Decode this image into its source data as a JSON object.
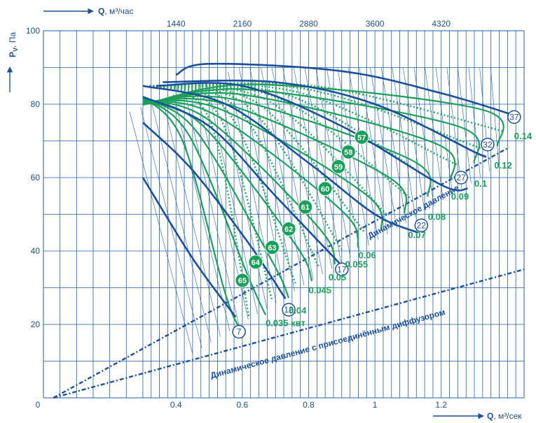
{
  "colors": {
    "blue": "#1b4f9c",
    "green": "#1aa05a",
    "grid": "#1f5fa8"
  },
  "axes": {
    "y_label": "P",
    "y_sub": "V",
    "y_unit": ", Па",
    "x_label": "Q",
    "x_unit": ", м³/сек",
    "top_label": "Q",
    "top_unit": ", м³/час"
  },
  "chart_data": {
    "type": "line",
    "xlabel": "Q, м³/сек",
    "ylabel": "PV, Па",
    "top_xlabel": "Q, м³/час",
    "xlim": [
      0,
      1.45
    ],
    "ylim": [
      0,
      100
    ],
    "grid": true,
    "x_ticks": [
      {
        "v": 0,
        "label": "0"
      },
      {
        "v": 0.4,
        "label": "0.4"
      },
      {
        "v": 0.6,
        "label": "0.6"
      },
      {
        "v": 0.8,
        "label": "0.8"
      },
      {
        "v": 1.0,
        "label": "1"
      },
      {
        "v": 1.2,
        "label": "1.2"
      }
    ],
    "y_ticks": [
      {
        "v": 20,
        "label": "20"
      },
      {
        "v": 40,
        "label": "40"
      },
      {
        "v": 60,
        "label": "60"
      },
      {
        "v": 80,
        "label": "80"
      },
      {
        "v": 100,
        "label": "100"
      }
    ],
    "top_ticks": [
      {
        "v": 0.4,
        "label": "1440"
      },
      {
        "v": 0.6,
        "label": "2160"
      },
      {
        "v": 0.8,
        "label": "2880"
      },
      {
        "v": 1.0,
        "label": "3600"
      },
      {
        "v": 1.2,
        "label": "4320"
      }
    ],
    "fan_curves": [
      {
        "name": "7",
        "points": [
          [
            0.3,
            60
          ],
          [
            0.45,
            38
          ],
          [
            0.58,
            22
          ]
        ],
        "label_at": [
          0.59,
          18
        ]
      },
      {
        "name": "12",
        "points": [
          [
            0.3,
            75
          ],
          [
            0.45,
            62
          ],
          [
            0.62,
            42
          ],
          [
            0.73,
            27
          ]
        ],
        "label_at": [
          0.74,
          24
        ]
      },
      {
        "name": "17",
        "points": [
          [
            0.3,
            82
          ],
          [
            0.5,
            74
          ],
          [
            0.7,
            55
          ],
          [
            0.9,
            36
          ]
        ],
        "label_at": [
          0.9,
          35
        ]
      },
      {
        "name": "22",
        "points": [
          [
            0.3,
            85
          ],
          [
            0.55,
            80
          ],
          [
            0.8,
            64
          ],
          [
            1.0,
            50
          ],
          [
            1.13,
            45
          ]
        ],
        "label_at": [
          1.14,
          47
        ]
      },
      {
        "name": "27",
        "points": [
          [
            0.34,
            85
          ],
          [
            0.6,
            85
          ],
          [
            0.9,
            74
          ],
          [
            1.2,
            58
          ],
          [
            1.28,
            57
          ]
        ],
        "label_at": [
          1.26,
          60
        ]
      },
      {
        "name": "32",
        "points": [
          [
            0.36,
            86
          ],
          [
            0.7,
            86
          ],
          [
            1.0,
            80
          ],
          [
            1.3,
            67
          ],
          [
            1.33,
            66
          ]
        ],
        "label_at": [
          1.34,
          69
        ]
      },
      {
        "name": "37",
        "points": [
          [
            0.4,
            88
          ],
          [
            0.5,
            91
          ],
          [
            0.9,
            89
          ],
          [
            1.2,
            83
          ],
          [
            1.42,
            77
          ]
        ],
        "label_at": [
          1.42,
          76.5
        ]
      }
    ],
    "power_labels": [
      {
        "label": "0.035 квт",
        "at": [
          0.67,
          19.5
        ]
      },
      {
        "label": "0.04",
        "at": [
          0.74,
          23
        ]
      },
      {
        "label": "0.045",
        "at": [
          0.8,
          28.5
        ]
      },
      {
        "label": "0.05",
        "at": [
          0.86,
          32
        ]
      },
      {
        "label": "0.055",
        "at": [
          0.91,
          35.5
        ]
      },
      {
        "label": "0.06",
        "at": [
          0.95,
          38
        ]
      },
      {
        "label": "0.07",
        "at": [
          1.1,
          43.5
        ]
      },
      {
        "label": "0.08",
        "at": [
          1.16,
          48.5
        ]
      },
      {
        "label": "0.09",
        "at": [
          1.23,
          54
        ]
      },
      {
        "label": "0.1",
        "at": [
          1.3,
          57.5
        ]
      },
      {
        "label": "0.12",
        "at": [
          1.36,
          62.5
        ]
      },
      {
        "label": "0.14",
        "at": [
          1.42,
          70.5
        ]
      }
    ],
    "speed_marks": [
      {
        "label": "57",
        "at": [
          0.96,
          71
        ]
      },
      {
        "label": "58",
        "at": [
          0.92,
          67
        ]
      },
      {
        "label": "59",
        "at": [
          0.89,
          63
        ]
      },
      {
        "label": "60",
        "at": [
          0.85,
          57
        ]
      },
      {
        "label": "61",
        "at": [
          0.79,
          52
        ]
      },
      {
        "label": "62",
        "at": [
          0.74,
          46
        ]
      },
      {
        "label": "63",
        "at": [
          0.69,
          41
        ]
      },
      {
        "label": "64",
        "at": [
          0.64,
          37
        ]
      },
      {
        "label": "65",
        "at": [
          0.6,
          32
        ]
      }
    ],
    "dynamic_lines": [
      {
        "label": "Динамическое давление",
        "points": [
          [
            0.03,
            0
          ],
          [
            1.4,
            68
          ]
        ]
      },
      {
        "label": "Динамическое давление с присоединённым диффузором",
        "points": [
          [
            0.03,
            0
          ],
          [
            1.45,
            35
          ]
        ]
      }
    ]
  }
}
